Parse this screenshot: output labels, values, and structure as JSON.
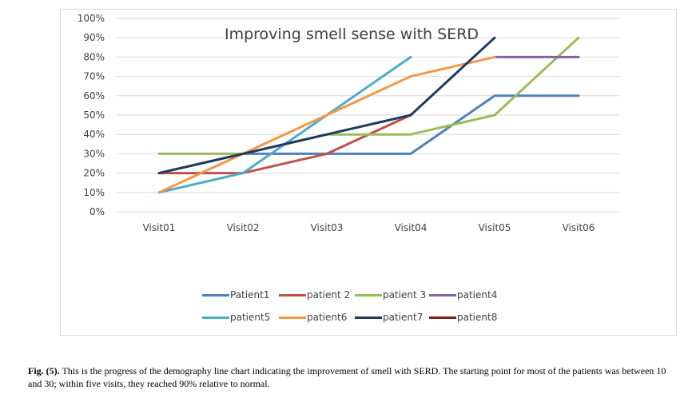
{
  "chart_data": {
    "type": "line",
    "title": "Improving smell sense with SERD",
    "categories": [
      "Visit01",
      "Visit02",
      "Visit03",
      "Visit04",
      "Visit05",
      "Visit06"
    ],
    "y_ticks": [
      "0%",
      "10%",
      "20%",
      "30%",
      "40%",
      "50%",
      "60%",
      "70%",
      "80%",
      "90%",
      "100%"
    ],
    "ylim": [
      0,
      100
    ],
    "grid": true,
    "legend_position": "bottom",
    "series": [
      {
        "name": "Patient1",
        "color": "#4F81BD",
        "values": [
          20,
          30,
          30,
          30,
          60,
          60
        ]
      },
      {
        "name": "patient 2",
        "color": "#C0504D",
        "values": [
          20,
          20,
          30,
          50,
          null,
          null
        ]
      },
      {
        "name": "patient 3",
        "color": "#9BBB59",
        "values": [
          30,
          30,
          40,
          40,
          50,
          90
        ]
      },
      {
        "name": "patient4",
        "color": "#8064A2",
        "values": [
          null,
          null,
          null,
          null,
          80,
          80
        ]
      },
      {
        "name": "patient5",
        "color": "#4BACC6",
        "values": [
          10,
          20,
          50,
          80,
          null,
          null
        ]
      },
      {
        "name": "patient6",
        "color": "#F79646",
        "values": [
          10,
          30,
          50,
          70,
          80,
          null
        ]
      },
      {
        "name": "patient7",
        "color": "#1F3A5F",
        "values": [
          20,
          30,
          40,
          50,
          90,
          null
        ]
      },
      {
        "name": "patient8",
        "color": "#7F1F1F",
        "values": [
          20,
          null,
          null,
          null,
          null,
          null
        ]
      }
    ]
  },
  "caption": {
    "label": "Fig. (5).",
    "text": " This is the progress of the demography line chart indicating the improvement of smell with SERD. The starting point for most of the patients was between 10 and 30; within five visits, they reached 90% relative to normal."
  }
}
